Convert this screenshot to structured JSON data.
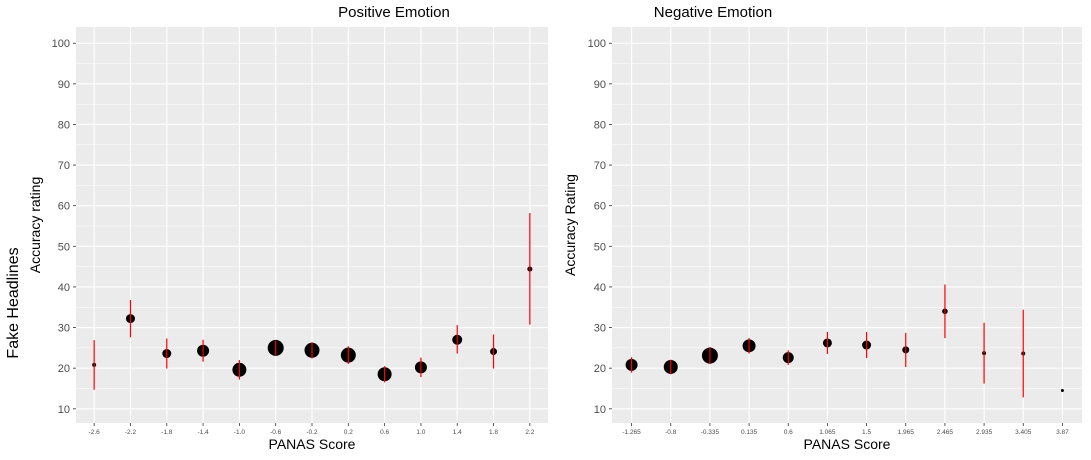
{
  "figure": {
    "row_label": "Fake Headlines"
  },
  "chart_data": [
    {
      "type": "scatter",
      "title": "Positive Emotion",
      "xlabel": "PANAS Score",
      "ylabel": "Accuracy rating",
      "x": [
        "-2.6",
        "-2.2",
        "-1.8",
        "-1.4",
        "-1.0",
        "-0.6",
        "-0.2",
        "0.2",
        "0.6",
        "1.0",
        "1.4",
        "1.8",
        "2.2"
      ],
      "y": [
        20.8,
        32.2,
        23.6,
        24.3,
        19.6,
        25.0,
        24.4,
        23.2,
        18.5,
        20.2,
        27.0,
        24.1,
        44.4
      ],
      "error_low": [
        14.7,
        27.6,
        19.9,
        21.6,
        17.2,
        23.2,
        22.4,
        21.0,
        16.5,
        17.8,
        23.6,
        19.9,
        30.7
      ],
      "error_high": [
        26.9,
        36.8,
        27.3,
        27.0,
        22.0,
        26.8,
        26.4,
        25.4,
        20.5,
        22.6,
        30.6,
        28.3,
        58.2
      ],
      "point_size": [
        2,
        4.5,
        4.5,
        6,
        7,
        8,
        7.5,
        7.5,
        7,
        6,
        5,
        3.5,
        2.5
      ],
      "ylim": [
        6.5,
        104
      ],
      "yticks": [
        10,
        20,
        30,
        40,
        50,
        60,
        70,
        80,
        90,
        100
      ],
      "grid": true,
      "background": "#ebebeb",
      "point_color": "#000000",
      "error_color": "#ff0000"
    },
    {
      "type": "scatter",
      "title": "Negative Emotion",
      "xlabel": "PANAS Score",
      "ylabel": "Accuracy Rating",
      "x": [
        "-1.265",
        "-0.8",
        "-0.335",
        "0.135",
        "0.6",
        "1.065",
        "1.5",
        "1.965",
        "2.465",
        "2.935",
        "3.405",
        "3.87"
      ],
      "y": [
        20.8,
        20.3,
        23.1,
        25.5,
        22.6,
        26.2,
        25.7,
        24.5,
        34.0,
        23.7,
        23.6,
        14.5
      ],
      "error_low": [
        18.9,
        18.5,
        21.0,
        23.6,
        20.8,
        23.5,
        22.5,
        20.3,
        27.4,
        16.2,
        12.8,
        14.5
      ],
      "error_high": [
        22.7,
        22.1,
        25.2,
        27.4,
        24.4,
        28.9,
        28.9,
        28.7,
        40.6,
        31.2,
        34.4,
        14.5
      ],
      "point_size": [
        6,
        7,
        8,
        6.5,
        5.5,
        4.5,
        4.5,
        3.5,
        2.8,
        2,
        2,
        1.5
      ],
      "ylim": [
        6.5,
        104
      ],
      "yticks": [
        10,
        20,
        30,
        40,
        50,
        60,
        70,
        80,
        90,
        100
      ],
      "grid": true,
      "background": "#ebebeb",
      "point_color": "#000000",
      "error_color": "#ff0000"
    }
  ]
}
